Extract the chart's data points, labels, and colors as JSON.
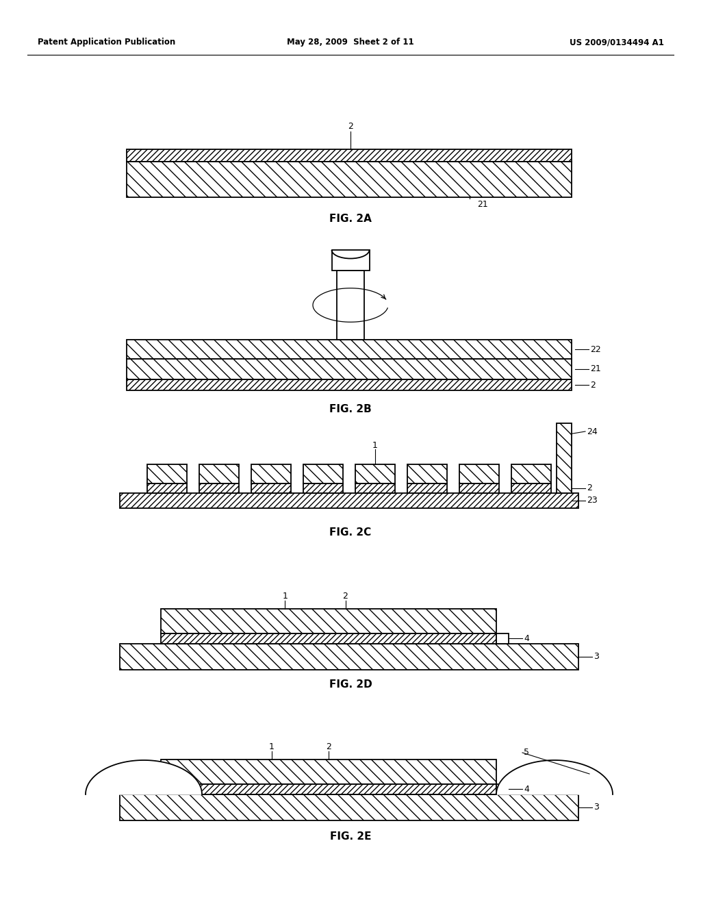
{
  "bg_color": "#ffffff",
  "header_left": "Patent Application Publication",
  "header_center": "May 28, 2009  Sheet 2 of 11",
  "header_right": "US 2009/0134494 A1",
  "line_color": "#000000"
}
